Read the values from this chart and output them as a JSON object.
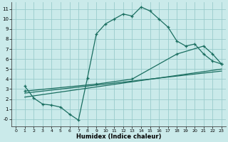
{
  "xlabel": "Humidex (Indice chaleur)",
  "bg_color": "#caeaea",
  "line_color": "#1a6e60",
  "grid_color": "#99cccc",
  "xlim": [
    -0.5,
    23.5
  ],
  "ylim": [
    -0.7,
    11.7
  ],
  "xticks": [
    0,
    1,
    2,
    3,
    4,
    5,
    6,
    7,
    8,
    9,
    10,
    11,
    12,
    13,
    14,
    15,
    16,
    17,
    18,
    19,
    20,
    21,
    22,
    23
  ],
  "yticks": [
    0,
    1,
    2,
    3,
    4,
    5,
    6,
    7,
    8,
    9,
    10,
    11
  ],
  "ytick_labels": [
    "-0",
    "1",
    "2",
    "3",
    "4",
    "5",
    "6",
    "7",
    "8",
    "9",
    "10",
    "11"
  ],
  "curve1_x": [
    1,
    2,
    3,
    4,
    5,
    6,
    7,
    8,
    9,
    10,
    11,
    12,
    13,
    14,
    15,
    16,
    17,
    18,
    19,
    20,
    21,
    22,
    23
  ],
  "curve1_y": [
    3.3,
    2.1,
    1.5,
    1.4,
    1.2,
    0.5,
    -0.1,
    4.1,
    8.5,
    9.5,
    10.0,
    10.5,
    10.3,
    11.2,
    10.8,
    10.0,
    9.2,
    7.8,
    7.3,
    7.5,
    6.5,
    5.8,
    5.5
  ],
  "curve2_x": [
    1,
    9,
    13,
    18,
    21,
    22,
    23
  ],
  "curve2_y": [
    2.8,
    3.5,
    4.0,
    6.5,
    7.3,
    6.5,
    5.5
  ],
  "curve3_x": [
    1,
    23
  ],
  "curve3_y": [
    2.2,
    5.0
  ],
  "curve4_x": [
    1,
    23
  ],
  "curve4_y": [
    2.6,
    4.8
  ]
}
